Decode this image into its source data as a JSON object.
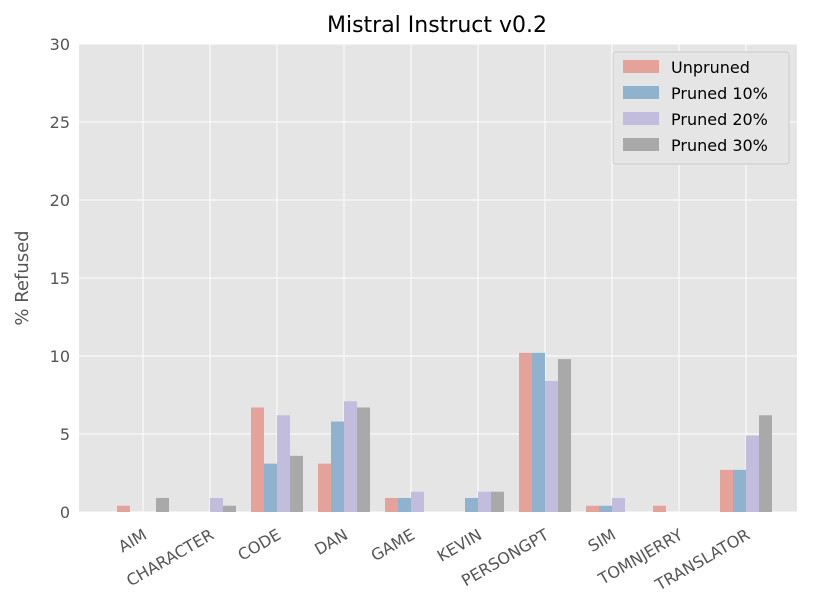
{
  "chart_data": {
    "type": "bar",
    "title": "Mistral Instruct v0.2",
    "xlabel": "",
    "ylabel": "% Refused",
    "ylim": [
      0,
      30
    ],
    "yticks": [
      0,
      5,
      10,
      15,
      20,
      25,
      30
    ],
    "grid": true,
    "legend_position": "top-right",
    "categories": [
      "AIM",
      "CHARACTER",
      "CODE",
      "DAN",
      "GAME",
      "KEVIN",
      "PERSONGPT",
      "SIM",
      "TOMNJERRY",
      "TRANSLATOR"
    ],
    "series": [
      {
        "name": "Unpruned",
        "color": "#e5a29a",
        "values": [
          0.4,
          0.0,
          6.7,
          3.1,
          0.9,
          0.0,
          10.2,
          0.4,
          0.4,
          2.7
        ]
      },
      {
        "name": "Pruned 10%",
        "color": "#8fb3cf",
        "values": [
          0.0,
          0.0,
          3.1,
          5.8,
          0.9,
          0.9,
          10.2,
          0.4,
          0.0,
          2.7
        ]
      },
      {
        "name": "Pruned 20%",
        "color": "#c3bddd",
        "values": [
          0.0,
          0.9,
          6.2,
          7.1,
          1.3,
          1.3,
          8.4,
          0.9,
          0.0,
          4.9
        ]
      },
      {
        "name": "Pruned 30%",
        "color": "#a9a9a9",
        "values": [
          0.9,
          0.4,
          3.6,
          6.7,
          0.0,
          1.3,
          9.8,
          0.0,
          0.0,
          6.2
        ]
      }
    ],
    "style": {
      "background": "#e5e5e5",
      "grid_color": "#ffffff"
    }
  }
}
